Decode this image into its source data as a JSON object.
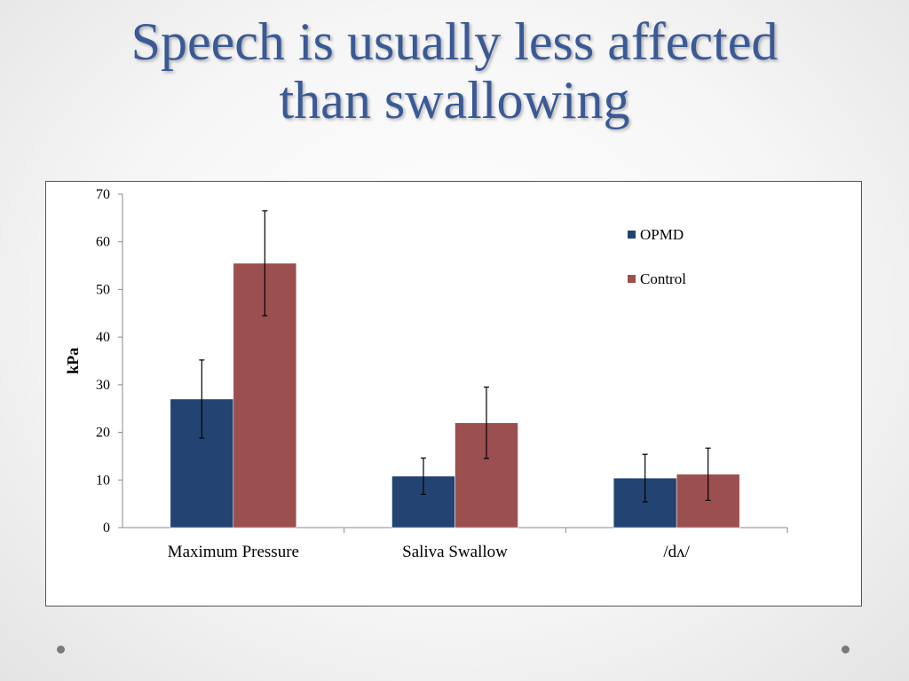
{
  "slide": {
    "title_line1": "Speech is usually less affected",
    "title_line2": "than swallowing"
  },
  "colors": {
    "title": "#3a5a96",
    "opmd": "#234472",
    "control": "#9b4f4f"
  },
  "chart_data": {
    "type": "bar",
    "categories": [
      "Maximum Pressure",
      "Saliva Swallow",
      "/dʌ/"
    ],
    "series": [
      {
        "name": "OPMD",
        "values": [
          27,
          10.8,
          10.4
        ],
        "error": [
          8.2,
          3.8,
          5.0
        ],
        "color": "#234472"
      },
      {
        "name": "Control",
        "values": [
          55.5,
          22,
          11.2
        ],
        "error": [
          11,
          7.5,
          5.5
        ],
        "color": "#9b4f4f"
      }
    ],
    "xlabel": "",
    "ylabel": "kPa",
    "ylim": [
      0,
      70
    ],
    "yticks": [
      0,
      10,
      20,
      30,
      40,
      50,
      60,
      70
    ],
    "grid": false,
    "legend_position": "top-right"
  }
}
